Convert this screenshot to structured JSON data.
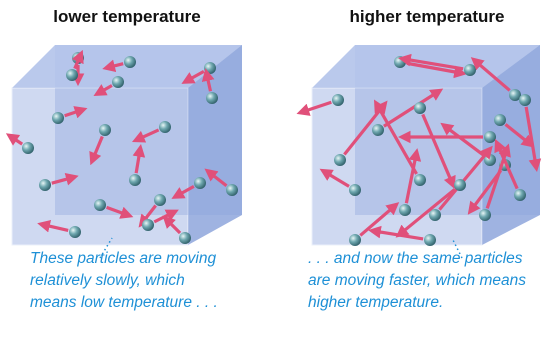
{
  "left": {
    "title": "lower temperature",
    "caption": [
      "These particles are moving",
      "relatively slowly, which",
      "means low temperature . . ."
    ]
  },
  "right": {
    "title": "higher temperature",
    "caption": [
      ". . . and now the same particles",
      "are moving faster, which means",
      "higher temperature."
    ]
  }
}
